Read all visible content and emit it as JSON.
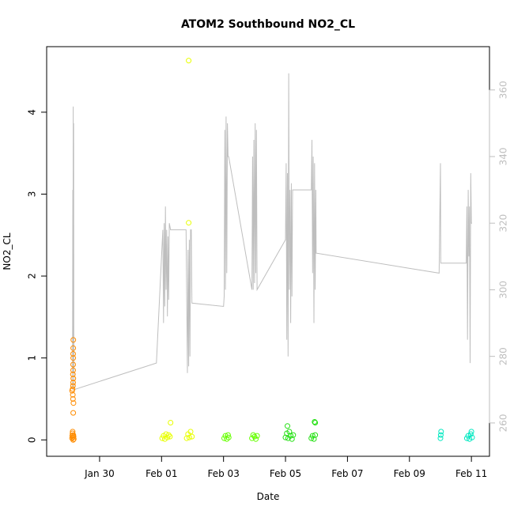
{
  "chart_data": {
    "type": "scatter",
    "title": "ATOM2 Southbound NO2_CL",
    "xlabel": "Date",
    "ylabel": "NO2_CL",
    "xlim": [
      "2017-01-28T07:00",
      "2017-02-11T14:00"
    ],
    "ylim": [
      -0.2,
      4.8
    ],
    "y2lim": [
      250,
      373
    ],
    "x_ticks": [
      {
        "date": "2017-01-30",
        "label": "Jan 30"
      },
      {
        "date": "2017-02-01",
        "label": "Feb 01"
      },
      {
        "date": "2017-02-03",
        "label": "Feb 03"
      },
      {
        "date": "2017-02-05",
        "label": "Feb 05"
      },
      {
        "date": "2017-02-07",
        "label": "Feb 07"
      },
      {
        "date": "2017-02-09",
        "label": "Feb 09"
      },
      {
        "date": "2017-02-11",
        "label": "Feb 11"
      }
    ],
    "y_ticks": [
      {
        "value": 0,
        "label": "0"
      },
      {
        "value": 1,
        "label": "1"
      },
      {
        "value": 2,
        "label": "2"
      },
      {
        "value": 3,
        "label": "3"
      },
      {
        "value": 4,
        "label": "4"
      }
    ],
    "y2_ticks": [
      {
        "value": 260,
        "label": "260"
      },
      {
        "value": 280,
        "label": "280"
      },
      {
        "value": 300,
        "label": "300"
      },
      {
        "value": 320,
        "label": "320"
      },
      {
        "value": 340,
        "label": "340"
      },
      {
        "value": 360,
        "label": "360"
      }
    ],
    "grid": false,
    "secondary_line": {
      "color": "#bebebe",
      "points": [
        [
          "2017-01-29T03:00",
          270
        ],
        [
          "2017-01-29T03:15",
          330
        ],
        [
          "2017-01-29T03:25",
          275
        ],
        [
          "2017-01-29T03:35",
          355
        ],
        [
          "2017-01-29T03:45",
          285
        ],
        [
          "2017-01-29T03:55",
          350
        ],
        [
          "2017-01-29T04:05",
          270
        ],
        [
          "2017-01-31T20:00",
          278
        ],
        [
          "2017-02-01T01:00",
          318
        ],
        [
          "2017-02-01T01:30",
          290
        ],
        [
          "2017-02-01T02:00",
          320
        ],
        [
          "2017-02-01T02:30",
          295
        ],
        [
          "2017-02-01T03:00",
          325
        ],
        [
          "2017-02-01T03:30",
          300
        ],
        [
          "2017-02-01T04:00",
          318
        ],
        [
          "2017-02-01T04:30",
          292
        ],
        [
          "2017-02-01T05:00",
          316
        ],
        [
          "2017-02-01T05:30",
          297
        ],
        [
          "2017-02-01T06:00",
          320
        ],
        [
          "2017-02-01T07:00",
          318
        ],
        [
          "2017-02-01T19:00",
          318
        ],
        [
          "2017-02-01T20:00",
          275
        ],
        [
          "2017-02-01T20:30",
          312
        ],
        [
          "2017-02-01T21:00",
          277
        ],
        [
          "2017-02-01T21:30",
          315
        ],
        [
          "2017-02-01T22:00",
          280
        ],
        [
          "2017-02-01T22:30",
          318
        ],
        [
          "2017-02-01T23:00",
          318
        ],
        [
          "2017-02-01T23:30",
          296
        ],
        [
          "2017-02-03T00:00",
          295
        ],
        [
          "2017-02-03T00:30",
          298
        ],
        [
          "2017-02-03T01:00",
          348
        ],
        [
          "2017-02-03T01:30",
          300
        ],
        [
          "2017-02-03T02:00",
          352
        ],
        [
          "2017-02-03T02:30",
          305
        ],
        [
          "2017-02-03T03:00",
          350
        ],
        [
          "2017-02-03T03:30",
          340
        ],
        [
          "2017-02-03T04:00",
          340
        ],
        [
          "2017-02-03T22:00",
          300
        ],
        [
          "2017-02-03T22:30",
          340
        ],
        [
          "2017-02-03T23:00",
          300
        ],
        [
          "2017-02-03T23:30",
          345
        ],
        [
          "2017-02-04T00:00",
          302
        ],
        [
          "2017-02-04T00:30",
          350
        ],
        [
          "2017-02-04T01:00",
          305
        ],
        [
          "2017-02-04T01:30",
          348
        ],
        [
          "2017-02-04T02:00",
          300
        ],
        [
          "2017-02-05T00:00",
          315
        ],
        [
          "2017-02-05T00:30",
          338
        ],
        [
          "2017-02-05T01:00",
          285
        ],
        [
          "2017-02-05T01:30",
          335
        ],
        [
          "2017-02-05T02:00",
          280
        ],
        [
          "2017-02-05T02:30",
          365
        ],
        [
          "2017-02-05T03:00",
          300
        ],
        [
          "2017-02-05T03:30",
          330
        ],
        [
          "2017-02-05T04:00",
          290
        ],
        [
          "2017-02-05T04:30",
          332
        ],
        [
          "2017-02-05T05:00",
          298
        ],
        [
          "2017-02-05T05:30",
          330
        ],
        [
          "2017-02-05T06:00",
          330
        ],
        [
          "2017-02-05T20:00",
          330
        ],
        [
          "2017-02-05T20:30",
          345
        ],
        [
          "2017-02-05T21:00",
          305
        ],
        [
          "2017-02-05T21:30",
          340
        ],
        [
          "2017-02-05T22:00",
          290
        ],
        [
          "2017-02-05T22:30",
          338
        ],
        [
          "2017-02-05T23:00",
          300
        ],
        [
          "2017-02-05T23:30",
          330
        ],
        [
          "2017-02-05T23:45",
          311
        ],
        [
          "2017-02-09T23:00",
          305
        ],
        [
          "2017-02-10T00:00",
          338
        ],
        [
          "2017-02-10T00:15",
          308
        ],
        [
          "2017-02-10T00:30",
          308
        ],
        [
          "2017-02-10T20:00",
          308
        ],
        [
          "2017-02-10T20:30",
          325
        ],
        [
          "2017-02-10T21:00",
          285
        ],
        [
          "2017-02-10T21:30",
          330
        ],
        [
          "2017-02-10T22:00",
          310
        ],
        [
          "2017-02-10T22:30",
          325
        ],
        [
          "2017-02-10T23:00",
          278
        ],
        [
          "2017-02-10T23:30",
          335
        ],
        [
          "2017-02-11T00:00",
          320
        ],
        [
          "2017-02-11T00:30",
          320
        ]
      ]
    },
    "series": [
      {
        "color": "#ff8c00",
        "points": [
          [
            "2017-01-29T02:40",
            0.02
          ],
          [
            "2017-01-29T02:50",
            0.05
          ],
          [
            "2017-01-29T03:00",
            0.08
          ],
          [
            "2017-01-29T03:10",
            0.1
          ],
          [
            "2017-01-29T03:20",
            0.03
          ],
          [
            "2017-01-29T03:30",
            0.0
          ],
          [
            "2017-01-29T03:40",
            0.06
          ],
          [
            "2017-01-29T03:50",
            0.04
          ],
          [
            "2017-01-29T04:00",
            0.01
          ],
          [
            "2017-01-29T02:45",
            0.6
          ],
          [
            "2017-01-29T03:05",
            0.62
          ],
          [
            "2017-01-29T03:15",
            0.55
          ],
          [
            "2017-01-29T03:25",
            0.5
          ],
          [
            "2017-01-29T03:35",
            0.33
          ],
          [
            "2017-01-29T03:45",
            0.45
          ],
          [
            "2017-01-29T03:30",
            0.7
          ],
          [
            "2017-01-29T03:40",
            0.75
          ],
          [
            "2017-01-29T03:20",
            0.8
          ],
          [
            "2017-01-29T03:30",
            0.85
          ],
          [
            "2017-01-29T03:30",
            0.92
          ],
          [
            "2017-01-29T03:35",
            1.0
          ],
          [
            "2017-01-29T03:30",
            1.05
          ],
          [
            "2017-01-29T03:35",
            1.12
          ],
          [
            "2017-01-29T03:40",
            1.22
          ],
          [
            "2017-01-29T03:25",
            0.66
          ]
        ]
      },
      {
        "color": "#e8ff00",
        "points": [
          [
            "2017-02-01T00:30",
            0.02
          ],
          [
            "2017-02-01T01:30",
            0.05
          ],
          [
            "2017-02-01T02:30",
            0.01
          ],
          [
            "2017-02-01T03:30",
            0.07
          ],
          [
            "2017-02-01T04:30",
            0.03
          ],
          [
            "2017-02-01T05:30",
            0.06
          ],
          [
            "2017-02-01T06:30",
            0.04
          ],
          [
            "2017-02-01T07:00",
            0.21
          ],
          [
            "2017-02-01T19:30",
            0.02
          ],
          [
            "2017-02-01T20:30",
            0.07
          ],
          [
            "2017-02-01T21:30",
            0.03
          ],
          [
            "2017-02-01T22:30",
            0.1
          ],
          [
            "2017-02-01T23:30",
            0.04
          ],
          [
            "2017-02-01T21:00",
            4.63
          ],
          [
            "2017-02-01T21:00",
            2.65
          ]
        ]
      },
      {
        "color": "#66ff00",
        "points": [
          [
            "2017-02-03T00:30",
            0.02
          ],
          [
            "2017-02-03T01:30",
            0.05
          ],
          [
            "2017-02-03T02:30",
            0.01
          ],
          [
            "2017-02-03T03:30",
            0.06
          ],
          [
            "2017-02-03T04:00",
            0.03
          ],
          [
            "2017-02-03T22:00",
            0.02
          ],
          [
            "2017-02-03T23:00",
            0.06
          ],
          [
            "2017-02-04T00:00",
            0.04
          ],
          [
            "2017-02-04T01:00",
            0.01
          ],
          [
            "2017-02-04T02:00",
            0.05
          ]
        ]
      },
      {
        "color": "#22e011",
        "points": [
          [
            "2017-02-05T00:00",
            0.03
          ],
          [
            "2017-02-05T01:00",
            0.08
          ],
          [
            "2017-02-05T02:00",
            0.02
          ],
          [
            "2017-02-05T03:00",
            0.1
          ],
          [
            "2017-02-05T04:00",
            0.05
          ],
          [
            "2017-02-05T05:00",
            0.01
          ],
          [
            "2017-02-05T06:00",
            0.06
          ],
          [
            "2017-02-05T01:30",
            0.17
          ],
          [
            "2017-02-05T20:00",
            0.02
          ],
          [
            "2017-02-05T21:00",
            0.05
          ],
          [
            "2017-02-05T22:00",
            0.01
          ],
          [
            "2017-02-05T23:00",
            0.06
          ],
          [
            "2017-02-05T22:30",
            0.22
          ],
          [
            "2017-02-05T23:00",
            0.21
          ]
        ]
      },
      {
        "color": "#00e8c0",
        "points": [
          [
            "2017-02-10T00:00",
            0.02
          ],
          [
            "2017-02-10T00:15",
            0.06
          ],
          [
            "2017-02-10T00:30",
            0.1
          ],
          [
            "2017-02-10T20:30",
            0.02
          ],
          [
            "2017-02-10T21:30",
            0.05
          ],
          [
            "2017-02-10T22:30",
            0.01
          ],
          [
            "2017-02-10T23:30",
            0.07
          ],
          [
            "2017-02-11T00:00",
            0.1
          ],
          [
            "2017-02-11T00:30",
            0.03
          ]
        ]
      }
    ]
  }
}
